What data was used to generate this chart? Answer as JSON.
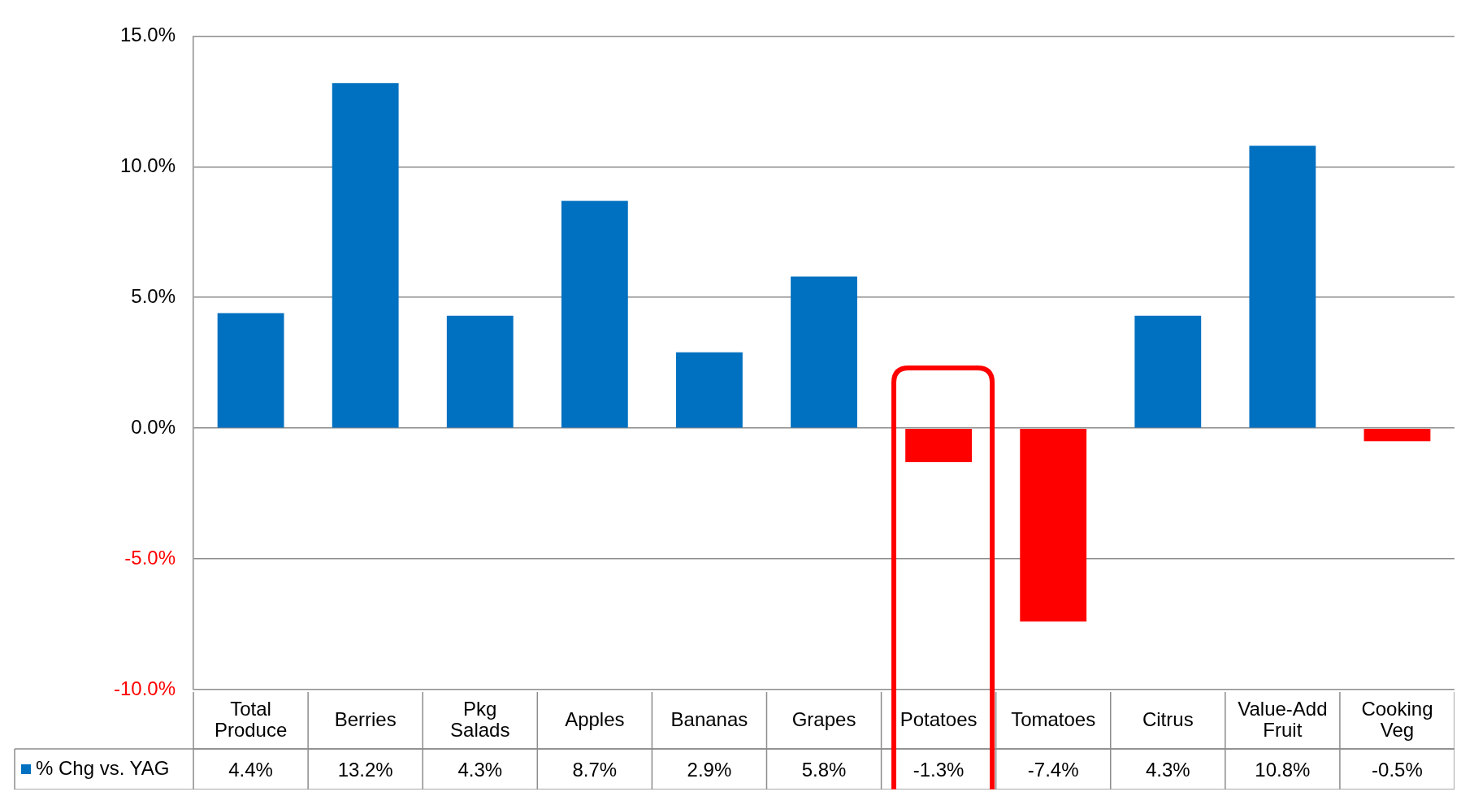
{
  "chart_data": {
    "type": "bar",
    "categories": [
      "Total Produce",
      "Berries",
      "Pkg Salads",
      "Apples",
      "Bananas",
      "Grapes",
      "Potatoes",
      "Tomatoes",
      "Citrus",
      "Value-Add Fruit",
      "Cooking Veg"
    ],
    "series": [
      {
        "name": "% Chg vs. YAG",
        "color": "#0070c0",
        "colors": [
          "#0070c0",
          "#0070c0",
          "#0070c0",
          "#0070c0",
          "#0070c0",
          "#0070c0",
          "#ff0000",
          "#ff0000",
          "#0070c0",
          "#0070c0",
          "#ff0000"
        ],
        "values": [
          4.4,
          13.2,
          4.3,
          8.7,
          2.9,
          5.8,
          -1.3,
          -7.4,
          4.3,
          10.8,
          -0.5
        ]
      }
    ],
    "ylim": [
      -10,
      15
    ],
    "yticks": [
      {
        "value": -10,
        "label": "-10.0%"
      },
      {
        "value": -5,
        "label": "-5.0%"
      },
      {
        "value": 0,
        "label": "0.0%"
      },
      {
        "value": 5,
        "label": "5.0%"
      },
      {
        "value": 10,
        "label": "10.0%"
      },
      {
        "value": 15,
        "label": "15.0%"
      }
    ],
    "value_labels": [
      "4.4%",
      "13.2%",
      "4.3%",
      "8.7%",
      "2.9%",
      "5.8%",
      "-1.3%",
      "-7.4%",
      "4.3%",
      "10.8%",
      "-0.5%"
    ],
    "grid": "y"
  }
}
